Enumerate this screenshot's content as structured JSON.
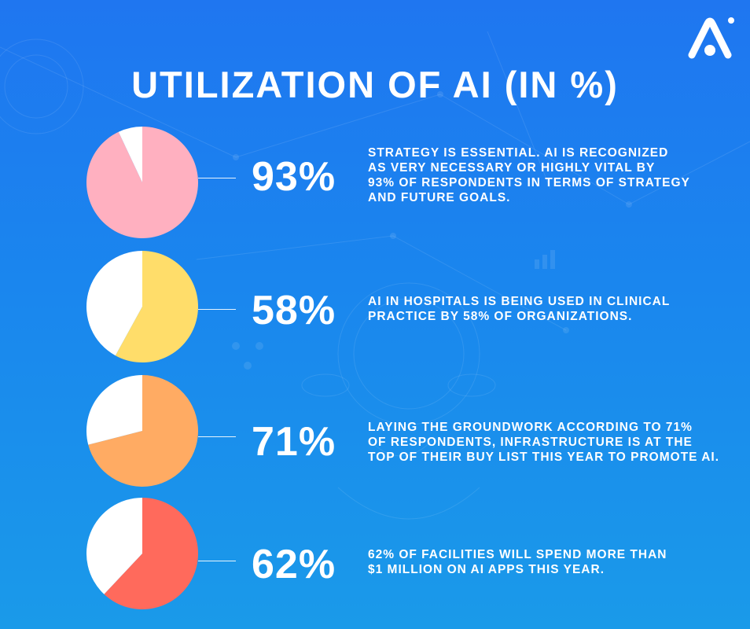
{
  "title": "UTILIZATION OF AI (IN %)",
  "logo": {
    "icon": "arc-logo-icon"
  },
  "colors": {
    "background_top": "#1f76f0",
    "background_bottom": "#1a9ae9",
    "text": "#ffffff",
    "remainder": "#ffffff",
    "pink": "#ffb0c0",
    "yellow": "#ffdd6a",
    "orange": "#ffab63",
    "red": "#ff6a5c"
  },
  "chart_data": [
    {
      "type": "pie",
      "slices": [
        {
          "value": 93,
          "color": "#ffb0c0"
        },
        {
          "value": 7,
          "color": "#ffffff"
        }
      ],
      "label": "93%",
      "description": "STRATEGY IS ESSENTIAL. AI IS RECOGNIZED AS VERY NECESSARY OR HIGHLY VITAL BY 93% OF RESPONDENTS IN TERMS OF STRATEGY AND FUTURE GOALS.",
      "description_lines": [
        "STRATEGY IS ESSENTIAL. AI IS RECOGNIZED",
        "AS VERY NECESSARY OR HIGHLY VITAL BY",
        "93% OF RESPONDENTS IN TERMS OF STRATEGY",
        "AND FUTURE GOALS."
      ]
    },
    {
      "type": "pie",
      "slices": [
        {
          "value": 58,
          "color": "#ffdd6a"
        },
        {
          "value": 42,
          "color": "#ffffff"
        }
      ],
      "label": "58%",
      "description": "AI IN HOSPITALS IS BEING USED IN CLINICAL PRACTICE BY 58% OF ORGANIZATIONS.",
      "description_lines": [
        "AI IN HOSPITALS IS BEING USED IN CLINICAL",
        "PRACTICE BY 58% OF ORGANIZATIONS."
      ]
    },
    {
      "type": "pie",
      "slices": [
        {
          "value": 71,
          "color": "#ffab63"
        },
        {
          "value": 29,
          "color": "#ffffff"
        }
      ],
      "label": "71%",
      "description": "LAYING THE GROUNDWORK ACCORDING TO 71% OF RESPONDENTS, INFRASTRUCTURE IS AT THE TOP OF THEIR BUY LIST THIS YEAR TO PROMOTE AI.",
      "description_lines": [
        "LAYING THE GROUNDWORK ACCORDING TO 71%",
        "OF RESPONDENTS, INFRASTRUCTURE IS AT THE",
        "TOP OF THEIR BUY LIST THIS YEAR TO PROMOTE AI."
      ]
    },
    {
      "type": "pie",
      "slices": [
        {
          "value": 62,
          "color": "#ff6a5c"
        },
        {
          "value": 38,
          "color": "#ffffff"
        }
      ],
      "label": "62%",
      "description": "62% OF FACILITIES WILL SPEND MORE THAN $1 MILLION ON AI APPS THIS YEAR.",
      "description_lines": [
        "62% OF FACILITIES WILL SPEND MORE THAN",
        "$1 MILLION ON AI APPS THIS YEAR."
      ]
    }
  ]
}
